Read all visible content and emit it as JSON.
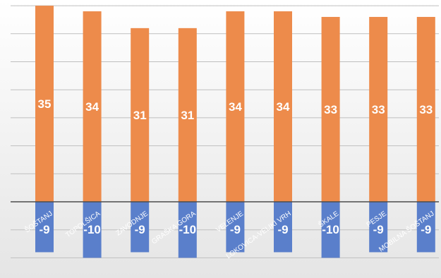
{
  "chart_data": {
    "type": "bar",
    "categories": [
      "ŠOŠTANJ",
      "TOPOLŠICA",
      "ZAVODNJE",
      "GRAŠKA GORA",
      "VELENJE",
      "LOKOVICA-VELIKI VRH",
      "ŠKALE",
      "PESJE",
      "MOBILNA ŠOŠTANJ"
    ],
    "series": [
      {
        "values": [
          35,
          34,
          31,
          31,
          34,
          34,
          33,
          33,
          33
        ],
        "color": "#ED8B4B"
      },
      {
        "values": [
          -9,
          -10,
          -9,
          -10,
          -9,
          -9,
          -10,
          -9,
          -9
        ],
        "color": "#5A7FCB"
      }
    ],
    "ylim": [
      -10.5,
      35.4
    ],
    "grid": true,
    "legend": "none",
    "colors": {
      "background_top": "#FFFFFF",
      "background_bottom": "#E5E5E5",
      "gridline": "#BFBFBF",
      "zero_line": "#4D4D4D",
      "label": "#FFFFFF"
    }
  }
}
